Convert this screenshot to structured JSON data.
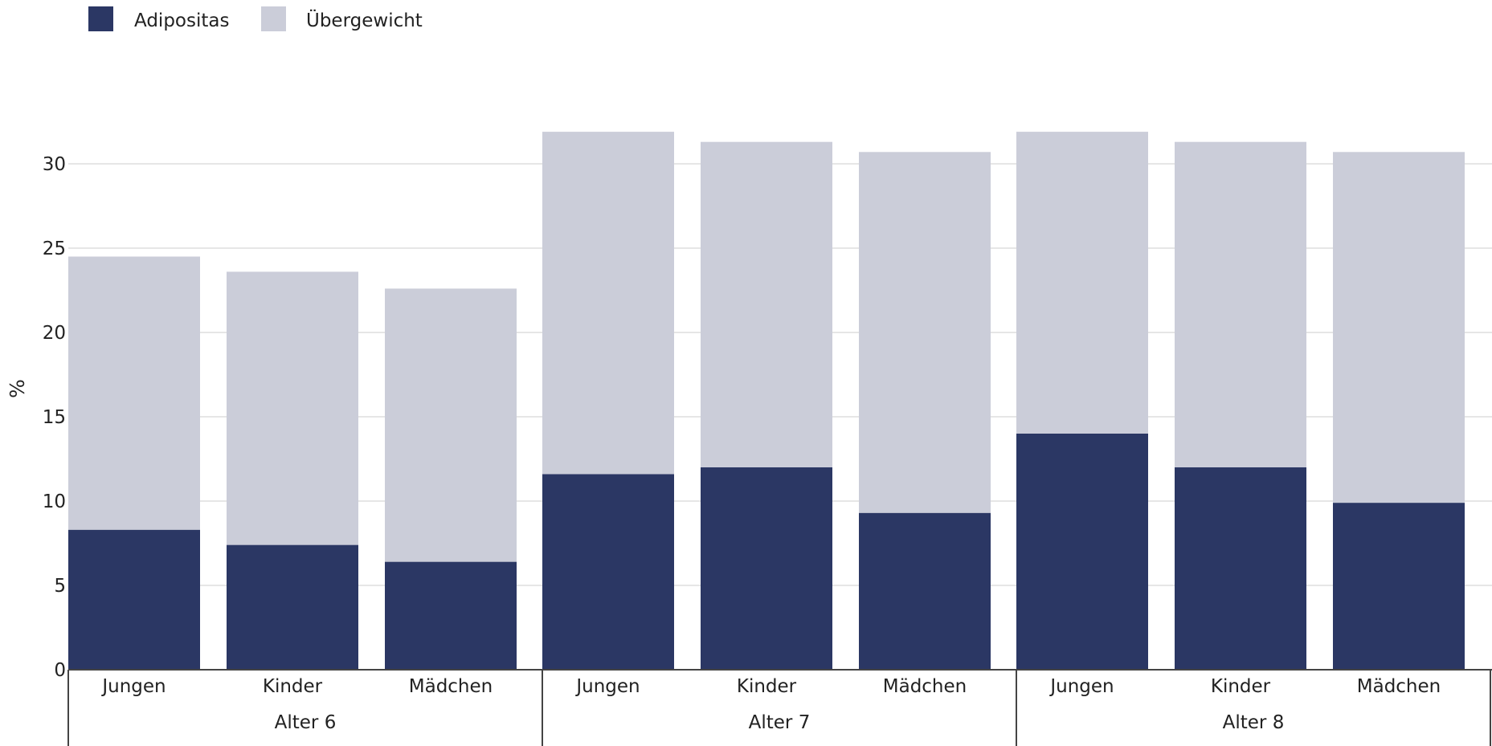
{
  "chart_data": {
    "type": "bar",
    "stacked": true,
    "title": "",
    "xlabel": "",
    "ylabel": "%",
    "ylim": [
      0,
      33
    ],
    "yticks": [
      0,
      5,
      10,
      15,
      20,
      25,
      30
    ],
    "grid": true,
    "legend_position": "top-left",
    "groups": [
      {
        "label": "Alter 6",
        "categories": [
          "Jungen",
          "Kinder",
          "Mädchen"
        ]
      },
      {
        "label": "Alter 7",
        "categories": [
          "Jungen",
          "Kinder",
          "Mädchen"
        ]
      },
      {
        "label": "Alter 8",
        "categories": [
          "Jungen",
          "Kinder",
          "Mädchen"
        ]
      }
    ],
    "series": [
      {
        "name": "Adipositas",
        "color": "#2b3764",
        "values": [
          8.3,
          7.4,
          6.4,
          11.6,
          12.0,
          9.3,
          14.0,
          12.0,
          9.9
        ]
      },
      {
        "name": "Übergewicht",
        "color": "#cbcdd9",
        "values": [
          16.2,
          16.2,
          16.2,
          20.3,
          19.3,
          21.4,
          17.9,
          19.3,
          20.8
        ]
      }
    ],
    "colors": {
      "grid": "#e6e6e6",
      "axis": "#444444",
      "text": "#222222"
    }
  }
}
